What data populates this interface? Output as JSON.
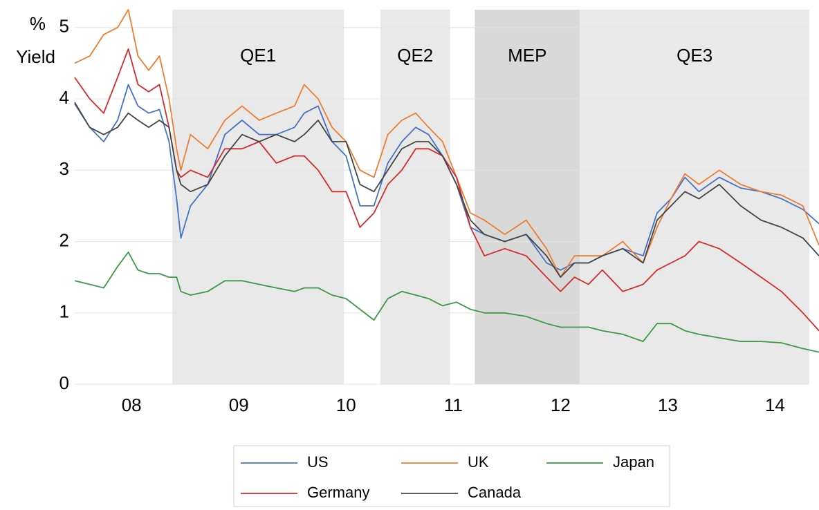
{
  "chart_data": {
    "type": "line",
    "ylabel": [
      "%",
      "Yield"
    ],
    "x": [
      2007.47,
      2007.61,
      2007.74,
      2007.87,
      2007.97,
      2008.06,
      2008.16,
      2008.26,
      2008.35,
      2008.42,
      2008.46,
      2008.55,
      2008.71,
      2008.87,
      2009.03,
      2009.19,
      2009.35,
      2009.52,
      2009.61,
      2009.74,
      2009.87,
      2010.0,
      2010.13,
      2010.26,
      2010.39,
      2010.52,
      2010.65,
      2010.77,
      2010.9,
      2011.03,
      2011.16,
      2011.29,
      2011.48,
      2011.68,
      2011.87,
      2012.0,
      2012.13,
      2012.26,
      2012.39,
      2012.58,
      2012.77,
      2012.9,
      2013.03,
      2013.16,
      2013.29,
      2013.48,
      2013.68,
      2013.87,
      2014.06,
      2014.26,
      2014.41
    ],
    "series": [
      {
        "name": "US",
        "color": "#4472c4",
        "values": [
          3.93,
          3.6,
          3.4,
          3.7,
          4.2,
          3.9,
          3.8,
          3.85,
          3.4,
          2.6,
          2.05,
          2.5,
          2.8,
          3.5,
          3.7,
          3.5,
          3.5,
          3.6,
          3.8,
          3.9,
          3.4,
          3.2,
          2.5,
          2.5,
          3.1,
          3.4,
          3.6,
          3.5,
          3.2,
          2.8,
          2.2,
          2.1,
          2.0,
          2.1,
          1.7,
          1.6,
          1.7,
          1.7,
          1.8,
          1.9,
          1.8,
          2.4,
          2.6,
          2.9,
          2.7,
          2.9,
          2.75,
          2.7,
          2.6,
          2.45,
          2.25
        ]
      },
      {
        "name": "UK",
        "color": "#ed7d31",
        "values": [
          4.5,
          4.6,
          4.9,
          5.0,
          5.25,
          4.6,
          4.4,
          4.6,
          4.0,
          3.3,
          3.0,
          3.5,
          3.3,
          3.7,
          3.9,
          3.7,
          3.8,
          3.9,
          4.2,
          4.0,
          3.6,
          3.4,
          3.0,
          2.9,
          3.5,
          3.7,
          3.8,
          3.6,
          3.4,
          2.9,
          2.4,
          2.3,
          2.1,
          2.3,
          1.9,
          1.5,
          1.8,
          1.8,
          1.8,
          2.0,
          1.7,
          2.2,
          2.6,
          2.95,
          2.8,
          3.0,
          2.8,
          2.7,
          2.65,
          2.5,
          1.95
        ]
      },
      {
        "name": "Japan",
        "color": "#3a9a45",
        "values": [
          1.45,
          1.4,
          1.35,
          1.65,
          1.85,
          1.6,
          1.55,
          1.55,
          1.5,
          1.5,
          1.3,
          1.25,
          1.3,
          1.45,
          1.45,
          1.4,
          1.35,
          1.3,
          1.35,
          1.35,
          1.25,
          1.2,
          1.05,
          0.9,
          1.2,
          1.3,
          1.25,
          1.2,
          1.1,
          1.15,
          1.05,
          1.0,
          1.0,
          0.95,
          0.85,
          0.8,
          0.8,
          0.8,
          0.75,
          0.7,
          0.6,
          0.85,
          0.85,
          0.75,
          0.7,
          0.65,
          0.6,
          0.6,
          0.58,
          0.5,
          0.45
        ]
      },
      {
        "name": "Germany",
        "color": "#d42a2a",
        "values": [
          4.3,
          4.0,
          3.8,
          4.3,
          4.7,
          4.2,
          4.1,
          4.2,
          3.6,
          3.0,
          2.9,
          3.0,
          2.9,
          3.3,
          3.3,
          3.4,
          3.1,
          3.2,
          3.2,
          3.0,
          2.7,
          2.7,
          2.2,
          2.4,
          2.8,
          3.0,
          3.3,
          3.3,
          3.2,
          2.9,
          2.2,
          1.8,
          1.9,
          1.8,
          1.5,
          1.3,
          1.5,
          1.4,
          1.6,
          1.3,
          1.4,
          1.6,
          1.7,
          1.8,
          2.0,
          1.9,
          1.7,
          1.5,
          1.3,
          1.0,
          0.75
        ]
      },
      {
        "name": "Canada",
        "color": "#444444",
        "values": [
          3.95,
          3.6,
          3.5,
          3.6,
          3.8,
          3.7,
          3.6,
          3.7,
          3.6,
          3.0,
          2.8,
          2.7,
          2.8,
          3.2,
          3.5,
          3.4,
          3.5,
          3.4,
          3.5,
          3.7,
          3.4,
          3.4,
          2.8,
          2.7,
          3.0,
          3.3,
          3.4,
          3.4,
          3.2,
          2.8,
          2.3,
          2.1,
          2.0,
          2.1,
          1.8,
          1.5,
          1.7,
          1.7,
          1.8,
          1.9,
          1.7,
          2.3,
          2.5,
          2.7,
          2.6,
          2.8,
          2.5,
          2.3,
          2.2,
          2.05,
          1.8
        ]
      }
    ],
    "regions": [
      {
        "label": "QE1",
        "start": 2008.38,
        "end": 2009.98,
        "color": "#e9e9e9"
      },
      {
        "label": "QE2",
        "start": 2010.32,
        "end": 2010.97,
        "color": "#e9e9e9"
      },
      {
        "label": "MEP",
        "start": 2011.2,
        "end": 2012.18,
        "color": "#d9d9d9"
      },
      {
        "label": "QE3",
        "start": 2012.18,
        "end": 2014.32,
        "color": "#e9e9e9"
      }
    ],
    "xlim": [
      2007.47,
      2014.41
    ],
    "xticks": [
      {
        "value": 2008,
        "label": "08"
      },
      {
        "value": 2009,
        "label": "09"
      },
      {
        "value": 2010,
        "label": "10"
      },
      {
        "value": 2011,
        "label": "11"
      },
      {
        "value": 2012,
        "label": "12"
      },
      {
        "value": 2013,
        "label": "13"
      },
      {
        "value": 2014,
        "label": "14"
      }
    ],
    "ylim": [
      0,
      5.25
    ],
    "yticks": [
      0,
      1,
      2,
      3,
      4,
      5
    ],
    "grid": true
  }
}
